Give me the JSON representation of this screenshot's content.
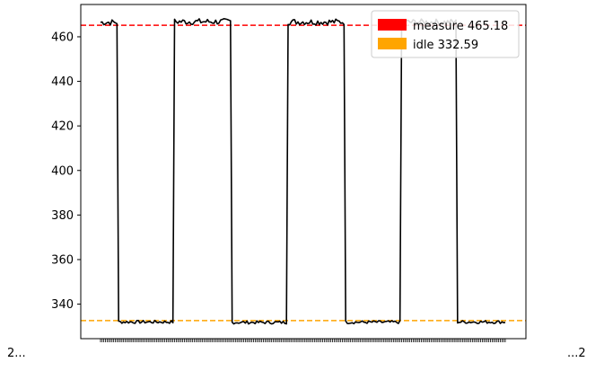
{
  "chart_data": {
    "type": "line",
    "title": "",
    "xlabel": "",
    "ylabel": "",
    "ylim": [
      324.5,
      474.5
    ],
    "yticks": [
      340,
      360,
      380,
      400,
      420,
      440,
      460
    ],
    "xtick_labels": {
      "left": "2...",
      "right": "...2"
    },
    "grid": false,
    "legend_placement": "top-right",
    "colors": {
      "signal": "#000000",
      "measure": "#ff0000",
      "idle": "#ffa500"
    },
    "segments": [
      {
        "state": "high",
        "level": 466.5,
        "start": 0,
        "end": 10
      },
      {
        "state": "low",
        "level": 332.0,
        "start": 11,
        "end": 44
      },
      {
        "state": "high",
        "level": 466.8,
        "start": 45,
        "end": 79
      },
      {
        "state": "low",
        "level": 331.8,
        "start": 80,
        "end": 113
      },
      {
        "state": "high",
        "level": 466.7,
        "start": 114,
        "end": 148
      },
      {
        "state": "low",
        "level": 331.9,
        "start": 149,
        "end": 182
      },
      {
        "state": "high",
        "level": 466.6,
        "start": 183,
        "end": 216
      },
      {
        "state": "low",
        "level": 332.0,
        "start": 217,
        "end": 246
      }
    ],
    "reference_lines": [
      {
        "name": "measure 465.18",
        "value": 465.18,
        "style": "dashed",
        "color": "#ff0000"
      },
      {
        "name": "idle 332.59",
        "value": 332.59,
        "style": "dashed",
        "color": "#ffa500"
      }
    ],
    "legend": [
      {
        "label": "measure 465.18",
        "color": "#ff0000"
      },
      {
        "label": "idle 332.59",
        "color": "#ffa500"
      }
    ]
  }
}
